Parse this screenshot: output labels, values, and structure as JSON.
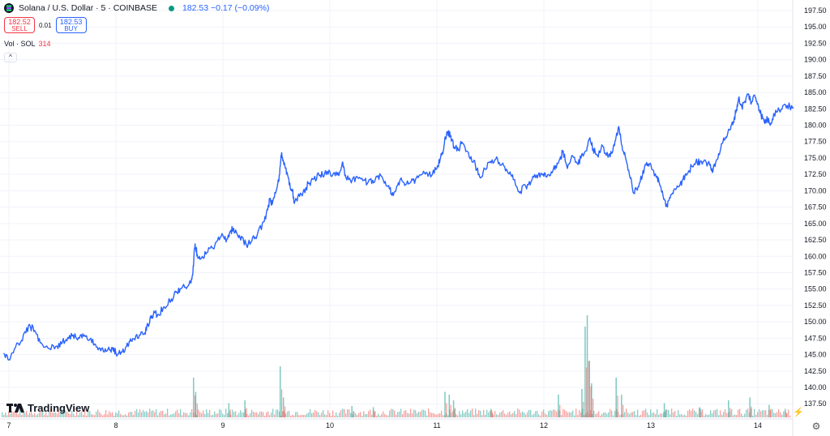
{
  "header": {
    "symbol": "Solana / U.S. Dollar · 5 · COINBASE",
    "ohlc": "182.53 −0.17 (−0.09%)"
  },
  "trade": {
    "sell_price": "182.52",
    "sell_label": "SELL",
    "spread": "0.01",
    "buy_price": "182.53",
    "buy_label": "BUY"
  },
  "volume_legend": {
    "label": "Vol · SOL",
    "value": "314"
  },
  "branding": {
    "logo_text": "TradingView"
  },
  "icons": {
    "symbol": "solana-icon",
    "live": "live-dot-icon",
    "collapse": "chevron-up-icon",
    "settings": "gear-icon",
    "replay": "lightning-icon"
  },
  "colors": {
    "line": "#2962ff",
    "vol_up": "#26a69a",
    "vol_down": "#ef5350",
    "grid": "#f0f3fa",
    "axis_text": "#131722"
  },
  "chart_data": {
    "type": "line",
    "symbol": "SOL/USD",
    "interval": "5",
    "x_tick_labels": [
      "7",
      "8",
      "9",
      "10",
      "11",
      "12",
      "13",
      "14"
    ],
    "y_tick_labels": [
      "137.50",
      "140.00",
      "142.50",
      "145.00",
      "147.50",
      "150.00",
      "152.50",
      "155.00",
      "157.50",
      "160.00",
      "162.50",
      "165.00",
      "167.50",
      "170.00",
      "172.50",
      "175.00",
      "177.50",
      "180.00",
      "182.50",
      "185.00",
      "187.50",
      "190.00",
      "192.50",
      "195.00",
      "197.50"
    ],
    "ylim": [
      135.6,
      198.4
    ],
    "xlim": [
      6.95,
      14.4
    ],
    "grid": true,
    "series": [
      {
        "points": [
          [
            6.95,
            145.2
          ],
          [
            7.0,
            144.2
          ],
          [
            7.05,
            145.8
          ],
          [
            7.12,
            147.2
          ],
          [
            7.15,
            148.5
          ],
          [
            7.2,
            149.3
          ],
          [
            7.25,
            148.4
          ],
          [
            7.3,
            146.8
          ],
          [
            7.38,
            145.9
          ],
          [
            7.45,
            146.3
          ],
          [
            7.5,
            146.9
          ],
          [
            7.55,
            147.6
          ],
          [
            7.6,
            148.0
          ],
          [
            7.65,
            147.6
          ],
          [
            7.7,
            147.8
          ],
          [
            7.75,
            147.2
          ],
          [
            7.8,
            146.6
          ],
          [
            7.85,
            146.0
          ],
          [
            7.9,
            145.9
          ],
          [
            7.95,
            145.7
          ],
          [
            7.98,
            146.0
          ],
          [
            8.0,
            145.2
          ],
          [
            8.05,
            145.4
          ],
          [
            8.1,
            146.3
          ],
          [
            8.13,
            147.0
          ],
          [
            8.17,
            147.4
          ],
          [
            8.22,
            148.0
          ],
          [
            8.27,
            148.3
          ],
          [
            8.3,
            149.5
          ],
          [
            8.33,
            150.6
          ],
          [
            8.36,
            151.4
          ],
          [
            8.4,
            151.1
          ],
          [
            8.45,
            152.3
          ],
          [
            8.52,
            153.5
          ],
          [
            8.56,
            154.5
          ],
          [
            8.6,
            155.0
          ],
          [
            8.65,
            155.3
          ],
          [
            8.7,
            155.9
          ],
          [
            8.72,
            157.5
          ],
          [
            8.73,
            160.3
          ],
          [
            8.74,
            161.9
          ],
          [
            8.76,
            160.3
          ],
          [
            8.8,
            159.8
          ],
          [
            8.85,
            160.6
          ],
          [
            8.9,
            161.3
          ],
          [
            8.95,
            162.4
          ],
          [
            9.0,
            163.2
          ],
          [
            9.03,
            162.2
          ],
          [
            9.07,
            163.8
          ],
          [
            9.1,
            164.3
          ],
          [
            9.14,
            163.1
          ],
          [
            9.18,
            162.9
          ],
          [
            9.22,
            161.7
          ],
          [
            9.27,
            162.3
          ],
          [
            9.32,
            163.2
          ],
          [
            9.38,
            165.3
          ],
          [
            9.42,
            167.1
          ],
          [
            9.44,
            168.8
          ],
          [
            9.46,
            167.9
          ],
          [
            9.5,
            170.1
          ],
          [
            9.52,
            171.4
          ],
          [
            9.54,
            174.5
          ],
          [
            9.55,
            175.8
          ],
          [
            9.57,
            174.0
          ],
          [
            9.6,
            172.8
          ],
          [
            9.62,
            170.9
          ],
          [
            9.65,
            169.9
          ],
          [
            9.67,
            168.2
          ],
          [
            9.7,
            169.1
          ],
          [
            9.75,
            169.8
          ],
          [
            9.8,
            171.1
          ],
          [
            9.85,
            171.8
          ],
          [
            9.9,
            172.3
          ],
          [
            9.95,
            172.6
          ],
          [
            10.0,
            172.9
          ],
          [
            10.05,
            172.3
          ],
          [
            10.1,
            173.1
          ],
          [
            10.12,
            174.4
          ],
          [
            10.15,
            172.0
          ],
          [
            10.2,
            171.2
          ],
          [
            10.25,
            172.2
          ],
          [
            10.3,
            171.9
          ],
          [
            10.35,
            171.1
          ],
          [
            10.4,
            171.6
          ],
          [
            10.45,
            172.3
          ],
          [
            10.5,
            171.6
          ],
          [
            10.55,
            170.8
          ],
          [
            10.58,
            169.3
          ],
          [
            10.62,
            170.3
          ],
          [
            10.66,
            171.8
          ],
          [
            10.7,
            170.8
          ],
          [
            10.75,
            171.2
          ],
          [
            10.8,
            171.7
          ],
          [
            10.85,
            172.4
          ],
          [
            10.9,
            172.8
          ],
          [
            10.95,
            172.3
          ],
          [
            11.0,
            173.4
          ],
          [
            11.03,
            174.8
          ],
          [
            11.06,
            176.1
          ],
          [
            11.08,
            178.0
          ],
          [
            11.1,
            179.0
          ],
          [
            11.13,
            178.4
          ],
          [
            11.16,
            176.7
          ],
          [
            11.2,
            176.2
          ],
          [
            11.23,
            177.2
          ],
          [
            11.27,
            176.0
          ],
          [
            11.32,
            175.2
          ],
          [
            11.36,
            173.9
          ],
          [
            11.4,
            172.1
          ],
          [
            11.45,
            173.3
          ],
          [
            11.5,
            174.5
          ],
          [
            11.55,
            174.8
          ],
          [
            11.6,
            173.9
          ],
          [
            11.65,
            173.3
          ],
          [
            11.7,
            172.2
          ],
          [
            11.74,
            170.7
          ],
          [
            11.78,
            169.9
          ],
          [
            11.83,
            170.7
          ],
          [
            11.88,
            171.4
          ],
          [
            11.93,
            172.4
          ],
          [
            11.98,
            172.6
          ],
          [
            12.02,
            172.1
          ],
          [
            12.07,
            172.9
          ],
          [
            12.11,
            173.8
          ],
          [
            12.15,
            174.9
          ],
          [
            12.18,
            176.1
          ],
          [
            12.22,
            173.4
          ],
          [
            12.27,
            175.3
          ],
          [
            12.32,
            174.0
          ],
          [
            12.36,
            175.7
          ],
          [
            12.4,
            176.1
          ],
          [
            12.43,
            178.1
          ],
          [
            12.46,
            176.4
          ],
          [
            12.5,
            175.4
          ],
          [
            12.55,
            176.8
          ],
          [
            12.6,
            175.1
          ],
          [
            12.64,
            175.8
          ],
          [
            12.67,
            177.7
          ],
          [
            12.7,
            179.8
          ],
          [
            12.73,
            176.9
          ],
          [
            12.76,
            175.3
          ],
          [
            12.8,
            172.4
          ],
          [
            12.84,
            169.6
          ],
          [
            12.88,
            170.6
          ],
          [
            12.92,
            172.2
          ],
          [
            12.96,
            174.3
          ],
          [
            13.0,
            174.0
          ],
          [
            13.05,
            172.1
          ],
          [
            13.08,
            171.1
          ],
          [
            13.12,
            168.7
          ],
          [
            13.15,
            167.7
          ],
          [
            13.18,
            168.9
          ],
          [
            13.22,
            170.3
          ],
          [
            13.26,
            170.6
          ],
          [
            13.3,
            171.7
          ],
          [
            13.34,
            172.6
          ],
          [
            13.38,
            173.7
          ],
          [
            13.42,
            174.4
          ],
          [
            13.46,
            174.4
          ],
          [
            13.5,
            174.7
          ],
          [
            13.55,
            173.9
          ],
          [
            13.58,
            173.0
          ],
          [
            13.62,
            174.8
          ],
          [
            13.66,
            177.2
          ],
          [
            13.7,
            178.2
          ],
          [
            13.74,
            179.3
          ],
          [
            13.77,
            180.5
          ],
          [
            13.8,
            182.4
          ],
          [
            13.82,
            184.1
          ],
          [
            13.85,
            182.8
          ],
          [
            13.88,
            183.6
          ],
          [
            13.91,
            184.8
          ],
          [
            13.94,
            183.4
          ],
          [
            13.97,
            184.6
          ],
          [
            14.0,
            183.3
          ],
          [
            14.03,
            181.6
          ],
          [
            14.06,
            180.5
          ],
          [
            14.09,
            180.9
          ],
          [
            14.12,
            180.3
          ],
          [
            14.15,
            181.8
          ],
          [
            14.2,
            182.3
          ],
          [
            14.25,
            183.2
          ],
          [
            14.3,
            182.8
          ],
          [
            14.33,
            182.53
          ]
        ]
      }
    ],
    "volume": {
      "label": "Vol · SOL",
      "spikes": [
        [
          8.72,
          70
        ],
        [
          8.74,
          45
        ],
        [
          9.05,
          25
        ],
        [
          9.2,
          30
        ],
        [
          9.53,
          90
        ],
        [
          9.56,
          35
        ],
        [
          10.2,
          20
        ],
        [
          10.4,
          18
        ],
        [
          11.07,
          45
        ],
        [
          11.11,
          40
        ],
        [
          11.15,
          30
        ],
        [
          11.5,
          15
        ],
        [
          12.13,
          40
        ],
        [
          12.35,
          50
        ],
        [
          12.38,
          160
        ],
        [
          12.4,
          180
        ],
        [
          12.42,
          100
        ],
        [
          12.44,
          60
        ],
        [
          12.67,
          70
        ],
        [
          12.72,
          40
        ],
        [
          13.12,
          25
        ],
        [
          13.45,
          18
        ],
        [
          13.72,
          30
        ],
        [
          13.92,
          35
        ],
        [
          14.1,
          22
        ],
        [
          14.25,
          15
        ]
      ]
    }
  }
}
